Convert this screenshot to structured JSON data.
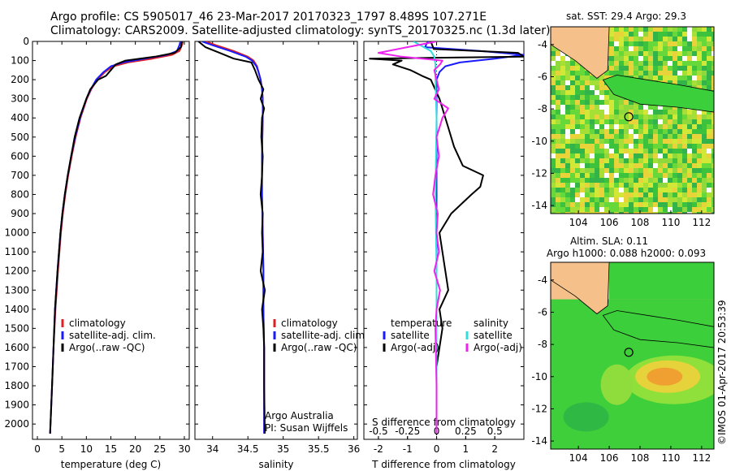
{
  "header": {
    "line1": "Argo profile: CS 5905017_46 23-Mar-2017 20170323_1797 8.489S 107.271E",
    "line2": "Climatology: CARS2009. Satellite-adjusted climatology: synTS_20170325.nc (1.3d later)"
  },
  "colors": {
    "climatology": "#e02020",
    "satellite": "#1a1aff",
    "argo": "#000000",
    "salinity_sat": "#33dddd",
    "salinity_argo": "#ee22ee",
    "land": "#f6c08a",
    "sea_green": "#3ccf3c"
  },
  "chart_data": [
    {
      "type": "line",
      "id": "temperature",
      "xlabel": "temperature (deg C)",
      "xlim": [
        -1,
        31
      ],
      "ylim": [
        2080,
        0
      ],
      "xticks": [
        "0",
        "5",
        "10",
        "15",
        "20",
        "25",
        "30"
      ],
      "yticks": [
        "0",
        "100",
        "200",
        "300",
        "400",
        "500",
        "600",
        "700",
        "800",
        "900",
        "1000",
        "1100",
        "1200",
        "1300",
        "1400",
        "1500",
        "1600",
        "1700",
        "1800",
        "1900",
        "2000"
      ],
      "legend": [
        "climatology",
        "satellite-adj. clim.",
        "Argo(..raw -QC)"
      ],
      "series": [
        {
          "name": "climatology",
          "depth": [
            0,
            20,
            50,
            70,
            90,
            110,
            130,
            160,
            200,
            250,
            300,
            400,
            500,
            600,
            700,
            800,
            900,
            1000,
            1200,
            1400,
            1600,
            1800,
            2050
          ],
          "values": [
            29.7,
            29.5,
            29.0,
            27.5,
            23.5,
            18.5,
            15.5,
            13.8,
            12.2,
            11.0,
            10.1,
            8.8,
            7.8,
            7.0,
            6.3,
            5.7,
            5.2,
            4.8,
            4.2,
            3.7,
            3.3,
            3.0,
            2.6
          ]
        },
        {
          "name": "satellite-adj. clim.",
          "depth": [
            0,
            20,
            50,
            70,
            90,
            110,
            130,
            160,
            200,
            250,
            300,
            400,
            500,
            600,
            700,
            800,
            900,
            1000,
            1200,
            1400,
            1600,
            1800,
            2050
          ],
          "values": [
            29.2,
            29.0,
            28.5,
            26.5,
            22.0,
            17.5,
            15.0,
            13.5,
            12.0,
            10.9,
            10.0,
            8.7,
            7.7,
            6.9,
            6.2,
            5.6,
            5.1,
            4.7,
            4.1,
            3.6,
            3.3,
            3.0,
            2.6
          ]
        },
        {
          "name": "Argo(..raw -QC)",
          "depth": [
            0,
            30,
            60,
            80,
            100,
            120,
            150,
            180,
            200,
            250,
            300,
            400,
            500,
            600,
            700,
            800,
            900,
            1000,
            1200,
            1400,
            1600,
            1800,
            2050
          ],
          "values": [
            29.5,
            29.3,
            28.0,
            24.0,
            18.0,
            16.0,
            15.0,
            14.0,
            12.4,
            10.8,
            10.0,
            8.6,
            7.6,
            6.9,
            6.2,
            5.6,
            5.1,
            4.7,
            4.1,
            3.6,
            3.3,
            3.0,
            2.6
          ]
        }
      ]
    },
    {
      "type": "line",
      "id": "salinity",
      "xlabel": "salinity",
      "xlim": [
        33.75,
        36.05
      ],
      "ylim": [
        2080,
        0
      ],
      "xticks": [
        "34",
        "34.5",
        "35",
        "35.5",
        "36"
      ],
      "legend": [
        "climatology",
        "satellite-adj. clim.",
        "Argo(..raw -QC)"
      ],
      "notes": [
        "Argo Australia",
        "PI: Susan Wijffels"
      ],
      "series": [
        {
          "name": "climatology",
          "depth": [
            0,
            20,
            50,
            80,
            100,
            130,
            160,
            200,
            250,
            300,
            400,
            600,
            800,
            1000,
            1200,
            1400,
            1600,
            1800,
            2050
          ],
          "values": [
            33.9,
            34.05,
            34.3,
            34.5,
            34.58,
            34.63,
            34.65,
            34.68,
            34.7,
            34.71,
            34.71,
            34.7,
            34.7,
            34.71,
            34.72,
            34.72,
            34.73,
            34.73,
            34.73
          ]
        },
        {
          "name": "satellite-adj. clim.",
          "depth": [
            0,
            20,
            50,
            80,
            100,
            130,
            160,
            200,
            250,
            300,
            400,
            600,
            800,
            1000,
            1200,
            1400,
            1600,
            1800,
            2050
          ],
          "values": [
            33.85,
            34.0,
            34.25,
            34.47,
            34.56,
            34.62,
            34.65,
            34.68,
            34.7,
            34.71,
            34.71,
            34.7,
            34.7,
            34.71,
            34.72,
            34.72,
            34.73,
            34.73,
            34.73
          ]
        },
        {
          "name": "Argo(..raw -QC)",
          "depth": [
            0,
            30,
            60,
            90,
            110,
            150,
            200,
            250,
            300,
            350,
            400,
            500,
            600,
            700,
            800,
            900,
            1000,
            1100,
            1200,
            1300,
            1400,
            1500,
            1600,
            1800,
            2050
          ],
          "values": [
            33.8,
            33.9,
            34.1,
            34.3,
            34.55,
            34.6,
            34.65,
            34.72,
            34.68,
            34.73,
            34.7,
            34.69,
            34.71,
            34.7,
            34.68,
            34.71,
            34.7,
            34.71,
            34.68,
            34.74,
            34.7,
            34.72,
            34.73,
            34.73,
            34.74
          ]
        }
      ]
    },
    {
      "type": "line",
      "id": "differences",
      "xlabel": "T difference from climatology",
      "top_xlabel": "S difference from climatology",
      "xlim": [
        -2.5,
        3.0
      ],
      "ylim": [
        2080,
        0
      ],
      "xticks": [
        "-2",
        "-1",
        "0",
        "1",
        "2"
      ],
      "top_xticks": [
        "-0.5",
        "-0.25",
        "0",
        "0.25",
        "0.5"
      ],
      "legend_temperature": [
        "temperature",
        "satellite",
        "Argo(-adj)"
      ],
      "legend_salinity": [
        "salinity",
        "satellite",
        "Argo(-adj)"
      ],
      "series": [
        {
          "name": "temperature satellite",
          "depth": [
            0,
            30,
            50,
            70,
            90,
            110,
            130,
            160,
            200,
            300,
            500,
            800,
            1200,
            1600,
            2050
          ],
          "values": [
            -0.3,
            -0.4,
            1.5,
            3.0,
            2.0,
            0.8,
            0.3,
            0.1,
            0.0,
            0.0,
            0.0,
            0.0,
            0.0,
            0.0,
            0.0
          ]
        },
        {
          "name": "temperature Argo(-adj)",
          "depth": [
            0,
            40,
            60,
            80,
            90,
            100,
            120,
            150,
            180,
            200,
            300,
            450,
            550,
            650,
            700,
            760,
            800,
            900,
            1000,
            1200,
            1300,
            1400,
            1500,
            1700,
            2050
          ],
          "values": [
            -0.2,
            -0.1,
            2.8,
            3.0,
            -2.3,
            -1.2,
            -1.5,
            -0.9,
            -0.5,
            -0.2,
            0.1,
            0.4,
            0.6,
            0.9,
            1.6,
            1.5,
            1.2,
            0.5,
            0.1,
            0.3,
            0.4,
            0.1,
            0.2,
            0.0,
            0.0
          ]
        },
        {
          "name": "salinity satellite",
          "depth": [
            0,
            50,
            80,
            120,
            200,
            400,
            800,
            1200,
            1600,
            2050
          ],
          "values": [
            -0.2,
            -0.05,
            -0.02,
            -0.01,
            -0.01,
            0.0,
            -0.01,
            0.0,
            0.0,
            0.0
          ]
        },
        {
          "name": "salinity Argo(-adj)",
          "depth": [
            0,
            60,
            80,
            100,
            120,
            150,
            200,
            250,
            300,
            350,
            400,
            500,
            600,
            700,
            800,
            900,
            1000,
            1100,
            1200,
            1300,
            1400,
            1500,
            1800,
            2050
          ],
          "values": [
            0.0,
            -0.5,
            -0.3,
            0.05,
            0.03,
            -0.02,
            0.0,
            0.02,
            -0.02,
            0.1,
            0.05,
            0.0,
            0.02,
            -0.01,
            -0.03,
            0.01,
            0.0,
            0.02,
            -0.02,
            0.03,
            0.0,
            -0.01,
            0.0,
            0.0
          ]
        }
      ]
    },
    {
      "type": "heatmap",
      "id": "sst-map",
      "title": "sat. SST: 29.4 Argo: 29.3",
      "xlim": [
        102.2,
        112.8
      ],
      "ylim": [
        -14.5,
        -2.9
      ],
      "xticks": [
        "104",
        "106",
        "108",
        "110",
        "112"
      ],
      "yticks": [
        "-4",
        "-6",
        "-8",
        "-10",
        "-12",
        "-14"
      ],
      "argo_position": [
        107.271,
        -8.489
      ]
    },
    {
      "type": "heatmap",
      "id": "sla-map",
      "title": "Altim. SLA: 0.11",
      "subtitle": "Argo h1000: 0.088 h2000: 0.093",
      "xlim": [
        102.2,
        112.8
      ],
      "ylim": [
        -14.5,
        -2.9
      ],
      "xticks": [
        "104",
        "106",
        "108",
        "110",
        "112"
      ],
      "yticks": [
        "-4",
        "-6",
        "-8",
        "-10",
        "-12",
        "-14"
      ],
      "argo_position": [
        107.271,
        -8.489
      ]
    }
  ],
  "credit": "©IMOS 01-Apr-2017 20:53:39"
}
